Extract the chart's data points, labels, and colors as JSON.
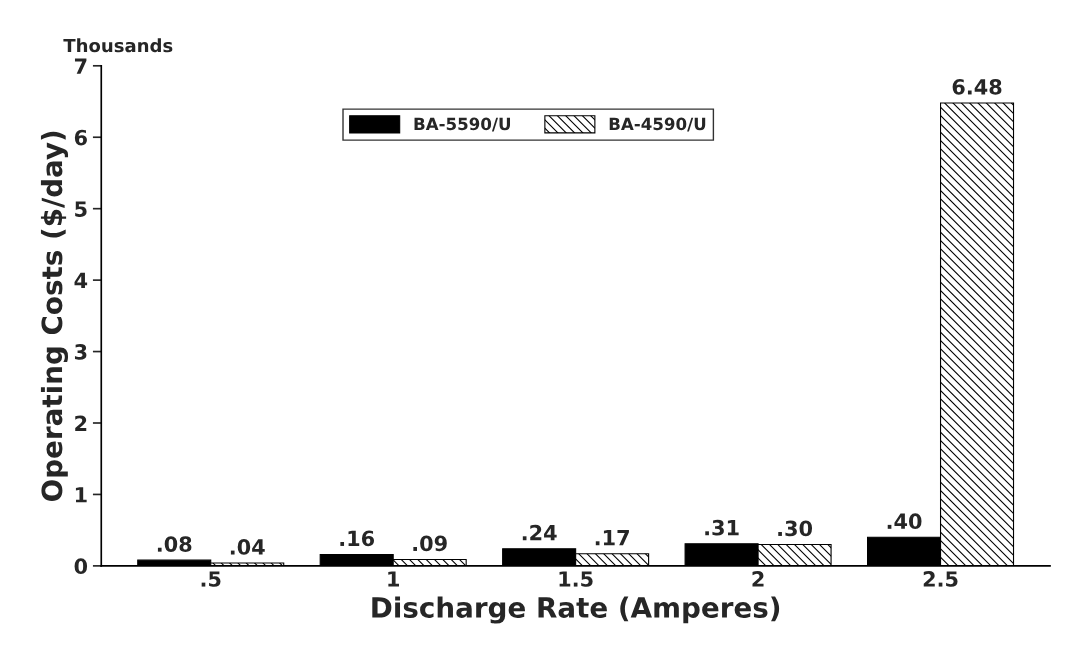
{
  "chart_data": {
    "type": "bar",
    "xlabel": "Discharge Rate (Amperes)",
    "ylabel": "Operating Costs ($/day)",
    "annotations": [
      "Thousands"
    ],
    "categories": [
      ".5",
      "1",
      "1.5",
      "2",
      "2.5"
    ],
    "series": [
      {
        "name": "BA-5590/U",
        "color": "#000000",
        "values": [
          0.08,
          0.16,
          0.24,
          0.31,
          0.4
        ],
        "value_labels": [
          ".08",
          ".16",
          ".24",
          ".31",
          ".40"
        ]
      },
      {
        "name": "BA-4590/U",
        "color": "#000000",
        "values": [
          0.04,
          0.09,
          0.17,
          0.3,
          6.48
        ],
        "value_labels": [
          ".04",
          ".09",
          ".17",
          ".30",
          "6.48"
        ]
      }
    ],
    "ylim": [
      0,
      7
    ],
    "yticks": [
      0,
      1,
      2,
      3,
      4,
      5,
      6,
      7
    ],
    "grid": false,
    "legend": "top"
  }
}
